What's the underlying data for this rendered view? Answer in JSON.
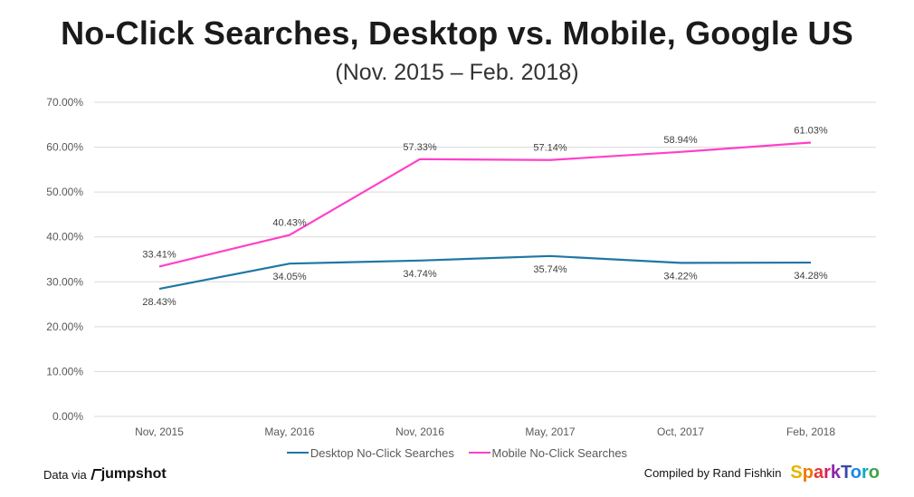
{
  "header": {
    "title": "No-Click Searches, Desktop vs. Mobile, Google US",
    "subtitle": "(Nov. 2015 – Feb. 2018)"
  },
  "colors": {
    "desktop": "#1f77a4",
    "mobile": "#ff40c8",
    "grid": "#d9d9d9"
  },
  "chart_data": {
    "type": "line",
    "title": "No-Click Searches, Desktop vs. Mobile, Google US",
    "subtitle": "(Nov. 2015 – Feb. 2018)",
    "categories": [
      "Nov, 2015",
      "May, 2016",
      "Nov, 2016",
      "May, 2017",
      "Oct, 2017",
      "Feb, 2018"
    ],
    "ylim": [
      0,
      70
    ],
    "yticks": [
      "0.00%",
      "10.00%",
      "20.00%",
      "30.00%",
      "40.00%",
      "50.00%",
      "60.00%",
      "70.00%"
    ],
    "grid": true,
    "legend_position": "bottom",
    "series": [
      {
        "name": "Desktop No-Click Searches",
        "values": [
          28.43,
          34.05,
          34.74,
          35.74,
          34.22,
          34.28
        ],
        "labels": [
          "28.43%",
          "34.05%",
          "34.74%",
          "35.74%",
          "34.22%",
          "34.28%"
        ]
      },
      {
        "name": "Mobile No-Click Searches",
        "values": [
          33.41,
          40.43,
          57.33,
          57.14,
          58.94,
          61.03
        ],
        "labels": [
          "33.41%",
          "40.43%",
          "57.33%",
          "57.14%",
          "58.94%",
          "61.03%"
        ]
      }
    ]
  },
  "footer": {
    "data_via": "Data via",
    "jumpshot": "jumpshot",
    "compiled_by": "Compiled by Rand Fishkin",
    "sparktoro": "SparkToro"
  }
}
